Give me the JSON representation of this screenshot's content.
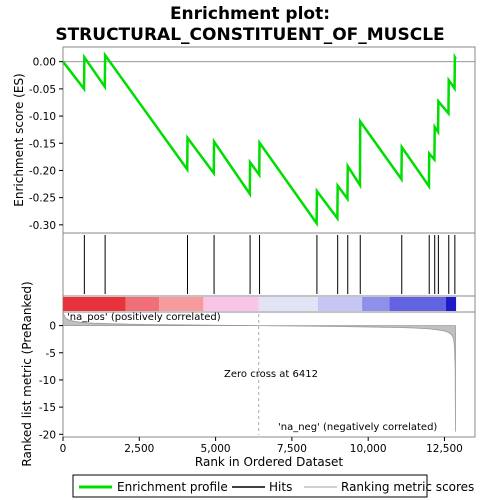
{
  "chart_data": {
    "type": "line",
    "title_line1": "Enrichment plot:",
    "title_line2": "STRUCTURAL_CONSTITUENT_OF_MUSCLE",
    "top_ylabel": "Enrichment score (ES)",
    "bottom_ylabel": "Ranked list metric (PreRanked)",
    "xlabel": "Rank in Ordered Dataset",
    "xlim": [
      0,
      13500
    ],
    "x_ticks": [
      0,
      2500,
      5000,
      7500,
      10000,
      12500
    ],
    "x_tick_labels": [
      "0",
      "2,500",
      "5,000",
      "7,500",
      "10,000",
      "12,500"
    ],
    "es_ylim": [
      -0.315,
      0.027
    ],
    "es_ticks": [
      0.0,
      -0.05,
      -0.1,
      -0.15,
      -0.2,
      -0.25,
      -0.3
    ],
    "es_tick_labels": [
      "0.00",
      "-0.05",
      "-0.10",
      "-0.15",
      "-0.20",
      "-0.25",
      "-0.30"
    ],
    "metric_ylim": [
      -20.5,
      2.5
    ],
    "metric_ticks": [
      0,
      -5,
      -10,
      -15,
      -20
    ],
    "metric_tick_labels": [
      "0",
      "-5",
      "-10",
      "-15",
      "-20"
    ],
    "hits": [
      700,
      1380,
      4080,
      4950,
      6130,
      6440,
      8320,
      9000,
      9330,
      9740,
      11100,
      12000,
      12180,
      12300,
      12640,
      12840
    ],
    "es_curve": {
      "x": [
        0,
        690,
        700,
        1370,
        1380,
        4070,
        4080,
        4940,
        4950,
        6120,
        6130,
        6430,
        6440,
        8310,
        8320,
        8990,
        9000,
        9320,
        9330,
        9730,
        9740,
        11090,
        11100,
        11990,
        12000,
        12170,
        12180,
        12290,
        12300,
        12630,
        12640,
        12830,
        12840,
        12870
      ],
      "y": [
        0.0,
        -0.05,
        0.008,
        -0.046,
        0.012,
        -0.198,
        -0.14,
        -0.205,
        -0.147,
        -0.243,
        -0.185,
        -0.208,
        -0.149,
        -0.297,
        -0.238,
        -0.288,
        -0.228,
        -0.252,
        -0.192,
        -0.227,
        -0.11,
        -0.216,
        -0.157,
        -0.229,
        -0.169,
        -0.18,
        -0.12,
        -0.129,
        -0.073,
        -0.095,
        -0.034,
        -0.049,
        0.008,
        0.005
      ]
    },
    "metric_curve": {
      "x": [
        0,
        80,
        200,
        400,
        700,
        1000,
        1500,
        2000,
        3000,
        4000,
        5000,
        6412,
        7000,
        8000,
        9000,
        10000,
        11000,
        11500,
        12000,
        12300,
        12500,
        12650,
        12750,
        12800,
        12830,
        12850,
        12860
      ],
      "y": [
        2.4,
        1.4,
        1.0,
        0.75,
        0.55,
        0.45,
        0.35,
        0.28,
        0.18,
        0.12,
        0.06,
        0.0,
        -0.04,
        -0.1,
        -0.17,
        -0.25,
        -0.35,
        -0.45,
        -0.6,
        -0.8,
        -1.0,
        -1.3,
        -1.8,
        -2.5,
        -4.0,
        -8.0,
        -19.5
      ]
    },
    "zero_cross_rank": 6412,
    "zero_cross_label": "Zero cross at 6412",
    "pos_label": "'na_pos' (positively correlated)",
    "neg_label": "'na_neg' (negatively correlated)",
    "colorbar": [
      {
        "from": 0,
        "to": 2050,
        "color": "#e8323c"
      },
      {
        "from": 2050,
        "to": 3150,
        "color": "#f07077"
      },
      {
        "from": 3150,
        "to": 4600,
        "color": "#f59a9d"
      },
      {
        "from": 4600,
        "to": 6412,
        "color": "#f9c4e8"
      },
      {
        "from": 6412,
        "to": 8350,
        "color": "#e3e3f7"
      },
      {
        "from": 8350,
        "to": 9800,
        "color": "#c5c6f2"
      },
      {
        "from": 9800,
        "to": 10700,
        "color": "#8f90ea"
      },
      {
        "from": 10700,
        "to": 12550,
        "color": "#6263e0"
      },
      {
        "from": 12550,
        "to": 12880,
        "color": "#1c1cc8"
      }
    ],
    "legend": [
      {
        "label": "Enrichment profile",
        "color": "#00dd00",
        "style": "thick"
      },
      {
        "label": "Hits",
        "color": "#000000",
        "style": "thin"
      },
      {
        "label": "Ranking metric scores",
        "color": "#c0c0c0",
        "style": "thin"
      }
    ],
    "colors": {
      "es_line": "#00dd00",
      "hit": "#000000",
      "metric_fill": "#c0c0c0",
      "zero_line": "#aaaaaa",
      "pos_text": "#cc0000",
      "neg_text": "#0000cc"
    }
  }
}
